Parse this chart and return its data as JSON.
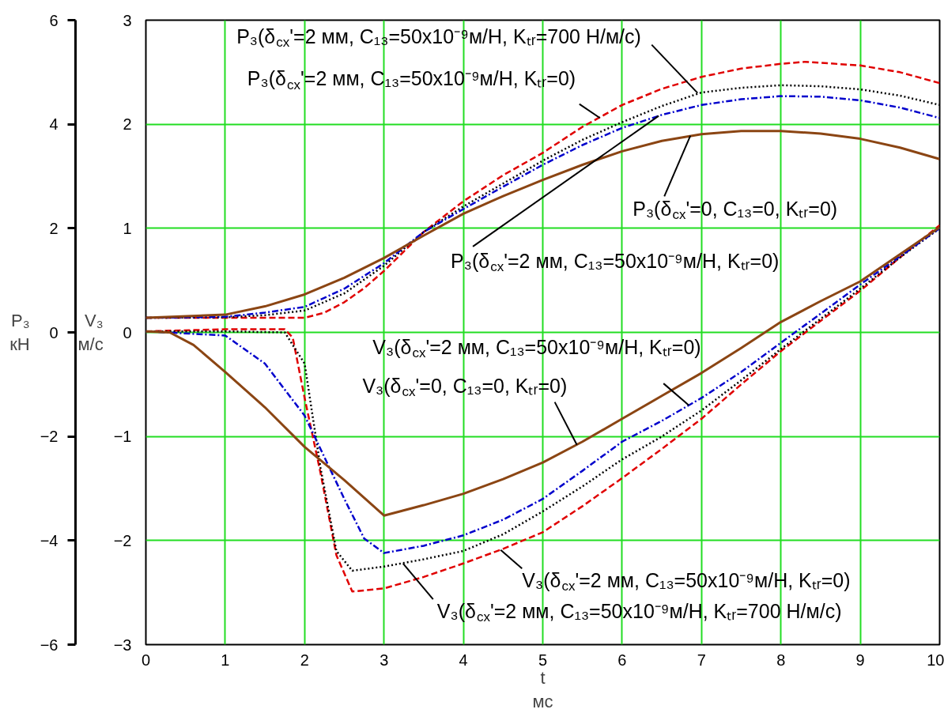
{
  "chart_data": {
    "type": "line",
    "xlabel": "t\nмс",
    "ylabel": "V₃\nм/с",
    "y2label": "P₃\nкН",
    "xlim": [
      0,
      10
    ],
    "xticks": [
      0,
      1,
      2,
      3,
      4,
      5,
      6,
      7,
      8,
      9,
      10
    ],
    "ylim": [
      -3,
      3
    ],
    "yticks": [
      -3,
      -2,
      -1,
      0,
      1,
      2,
      3
    ],
    "y2lim": [
      -6,
      6
    ],
    "y2ticks": [
      -6,
      -4,
      -2,
      0,
      2,
      4,
      6
    ],
    "grid": true,
    "series": [
      {
        "axis": "y2",
        "color": "#e00000",
        "line_style": "dashed",
        "x": [
          0,
          1,
          2,
          2.25,
          2.5,
          2.75,
          3,
          3.5,
          4,
          4.5,
          5,
          5.5,
          6,
          6.5,
          7,
          7.5,
          8,
          8.3,
          9,
          9.5,
          10
        ],
        "values": [
          0.28,
          0.28,
          0.28,
          0.38,
          0.58,
          0.85,
          1.18,
          1.93,
          2.52,
          3.02,
          3.45,
          3.95,
          4.37,
          4.68,
          4.91,
          5.07,
          5.16,
          5.2,
          5.13,
          5.0,
          4.79
        ]
      },
      {
        "axis": "y2",
        "color": "#000000",
        "line_style": "dotted",
        "x": [
          0,
          1,
          1.5,
          2,
          2.5,
          3,
          3.5,
          4,
          4.5,
          5,
          5.5,
          6,
          6.5,
          7,
          7.5,
          8,
          8.5,
          9,
          9.5,
          10
        ],
        "values": [
          0.28,
          0.29,
          0.33,
          0.42,
          0.75,
          1.28,
          1.93,
          2.42,
          2.86,
          3.3,
          3.7,
          4.04,
          4.35,
          4.61,
          4.7,
          4.75,
          4.73,
          4.67,
          4.55,
          4.37
        ]
      },
      {
        "axis": "y2",
        "color": "#0000cc",
        "line_style": "dashdot",
        "x": [
          0,
          1,
          1.5,
          2,
          2.5,
          3,
          3.5,
          4,
          4.5,
          5,
          5.5,
          6,
          6.5,
          7,
          7.5,
          8,
          8.5,
          9,
          9.5,
          10
        ],
        "values": [
          0.28,
          0.3,
          0.38,
          0.49,
          0.84,
          1.33,
          1.93,
          2.37,
          2.8,
          3.22,
          3.6,
          3.93,
          4.18,
          4.37,
          4.48,
          4.54,
          4.53,
          4.46,
          4.32,
          4.12
        ]
      },
      {
        "axis": "y2",
        "color": "#8b4513",
        "line_style": "solid",
        "x": [
          0,
          1,
          1.5,
          2,
          2.5,
          3,
          3.5,
          4,
          4.5,
          5,
          5.5,
          6,
          6.5,
          7,
          7.5,
          8,
          8.5,
          9,
          9.5,
          10
        ],
        "values": [
          0.28,
          0.34,
          0.5,
          0.73,
          1.05,
          1.43,
          1.86,
          2.28,
          2.62,
          2.93,
          3.22,
          3.48,
          3.68,
          3.81,
          3.87,
          3.87,
          3.82,
          3.72,
          3.55,
          3.33
        ]
      },
      {
        "color": "#e00000",
        "line_style": "dashed",
        "x": [
          0,
          1,
          1.75,
          1.85,
          2,
          2.2,
          2.4,
          2.6,
          3,
          3.5,
          4,
          4.5,
          5,
          5.5,
          6,
          6.5,
          7,
          7.5,
          8,
          8.5,
          9,
          9.5,
          10
        ],
        "values": [
          0.01,
          0.03,
          0.03,
          -0.05,
          -0.63,
          -1.35,
          -2.14,
          -2.49,
          -2.46,
          -2.35,
          -2.22,
          -2.08,
          -1.92,
          -1.67,
          -1.4,
          -1.12,
          -0.83,
          -0.5,
          -0.18,
          0.11,
          0.4,
          0.72,
          1.03
        ]
      },
      {
        "color": "#000000",
        "line_style": "dotted",
        "x": [
          0,
          1,
          1.75,
          2,
          2.2,
          2.4,
          2.6,
          3,
          3.5,
          4,
          4.5,
          5,
          5.5,
          6,
          6.5,
          7,
          7.5,
          8,
          8.5,
          9,
          9.5,
          10
        ],
        "values": [
          0.01,
          0.01,
          0.0,
          -0.3,
          -1.3,
          -2.1,
          -2.29,
          -2.25,
          -2.18,
          -2.1,
          -1.94,
          -1.72,
          -1.48,
          -1.22,
          -1.0,
          -0.75,
          -0.46,
          -0.16,
          0.13,
          0.42,
          0.72,
          1.0
        ]
      },
      {
        "color": "#0000cc",
        "line_style": "dashdot",
        "x": [
          0,
          1,
          1.5,
          2,
          2.25,
          2.5,
          2.75,
          3,
          3.5,
          4,
          4.5,
          5,
          5.5,
          6,
          6.5,
          7,
          7.5,
          8,
          8.5,
          9,
          9.5,
          10
        ],
        "values": [
          0.01,
          -0.03,
          -0.3,
          -0.8,
          -1.2,
          -1.6,
          -1.98,
          -2.12,
          -2.05,
          -1.95,
          -1.8,
          -1.6,
          -1.33,
          -1.05,
          -0.85,
          -0.63,
          -0.38,
          -0.1,
          0.18,
          0.46,
          0.73,
          1.0
        ]
      },
      {
        "color": "#8b4513",
        "line_style": "solid",
        "x": [
          0,
          0.3,
          0.6,
          1,
          1.5,
          2,
          2.5,
          3,
          3.5,
          4,
          4.5,
          5,
          5.5,
          6,
          6.5,
          7,
          7.5,
          8,
          8.5,
          9,
          9.5,
          10
        ],
        "values": [
          0.01,
          0.0,
          -0.12,
          -0.38,
          -0.72,
          -1.1,
          -1.42,
          -1.76,
          -1.66,
          -1.55,
          -1.41,
          -1.25,
          -1.05,
          -0.83,
          -0.61,
          -0.39,
          -0.15,
          0.1,
          0.3,
          0.49,
          0.75,
          1.01
        ]
      }
    ],
    "annotations": [
      {
        "text": "P₃(δ$_{cx}$'=2 мм, C₁₃=50x10⁻⁹м/Н, Kₜᵣ=700 Н/м/с)",
        "x": 6.95,
        "y": 2.3
      },
      {
        "text": "P₃(δ$_{cx}$'=2 мм, C₁₃=50x10⁻⁹м/Н, Kₜᵣ=0)",
        "x": 5.72,
        "y": 2.06
      },
      {
        "text": "P₃(δ$_{cx}$'=0, C₁₃=0, Kₜᵣ=0)",
        "x": 6.86,
        "y": 1.89
      },
      {
        "text": "P₃(δ$_{cx}$'=2 мм, C₁₃=50x10⁻⁹м/Н, Kₜᵣ=0)",
        "x": 6.46,
        "y": 2.08
      },
      {
        "text": "V₃(δ$_{cx}$'=2 мм, C₁₃=50x10⁻⁹м/Н, Kₜᵣ=0)",
        "x": 6.84,
        "y": -0.7
      },
      {
        "text": "V₃(δ$_{cx}$'=0, C₁₃=0, Kₜᵣ=0)",
        "x": 5.43,
        "y": -1.08
      },
      {
        "text": "V₃(δ$_{cx}$'=2 мм, C₁₃=50x10⁻⁹м/Н, Kₜᵣ=0)",
        "x": 4.47,
        "y": -2.09
      },
      {
        "text": "V₃(δ$_{cx}$'=2 мм, C₁₃=50x10⁻⁹м/Н, Kₜᵣ=700 Н/м/с)",
        "x": 3.24,
        "y": -2.22
      }
    ]
  }
}
